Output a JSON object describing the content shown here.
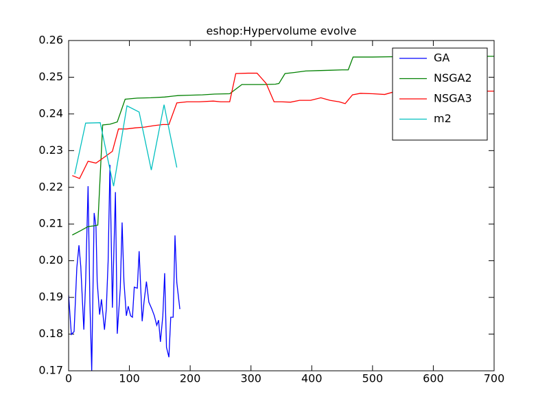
{
  "chart_data": {
    "type": "line",
    "title": "eshop:Hypervolume evolve",
    "xlim": [
      0,
      700
    ],
    "xticks": [
      0,
      100,
      200,
      300,
      400,
      500,
      600,
      700
    ],
    "ylim": [
      0.17,
      0.26
    ],
    "yticks": [
      0.17,
      0.18,
      0.19,
      {
        "value": 0.2,
        "label": "0.20"
      },
      0.21,
      0.22,
      0.23,
      0.24,
      0.25,
      0.26
    ],
    "legend": "upper right",
    "series": [
      {
        "name": "GA",
        "color": "#0000ff",
        "x": [
          0,
          4.5,
          9,
          13.5,
          17,
          20,
          25,
          28,
          32,
          35,
          38,
          42,
          45,
          47,
          51,
          54,
          59,
          62,
          65,
          68,
          72,
          77,
          80,
          85,
          88,
          91,
          95,
          98,
          102,
          105,
          108,
          113,
          116,
          121,
          124,
          128,
          132,
          137,
          141,
          145,
          148,
          151,
          155,
          158,
          161,
          165,
          168,
          172,
          175,
          178,
          183
        ],
        "values": [
          0.1906,
          0.1799,
          0.1807,
          0.1981,
          0.2042,
          0.1984,
          0.1812,
          0.1943,
          0.2203,
          0.1887,
          0.17,
          0.213,
          0.2093,
          0.1943,
          0.1853,
          0.1895,
          0.1812,
          0.1868,
          0.1999,
          0.2261,
          0.1872,
          0.2187,
          0.1801,
          0.1925,
          0.2104,
          0.1943,
          0.185,
          0.1876,
          0.185,
          0.1846,
          0.1928,
          0.1925,
          0.2026,
          0.1835,
          0.1887,
          0.1943,
          0.1887,
          0.1868,
          0.185,
          0.1824,
          0.1838,
          0.1779,
          0.185,
          0.1966,
          0.1764,
          0.1737,
          0.1846,
          0.1846,
          0.2069,
          0.194,
          0.1868
        ]
      },
      {
        "name": "NSGA2",
        "color": "#008000",
        "x": [
          6,
          20,
          32,
          42,
          48,
          56,
          68,
          80,
          93,
          113,
          135,
          158,
          180,
          200,
          220,
          240,
          265,
          285,
          320,
          340,
          346,
          356,
          372,
          390,
          410,
          430,
          450,
          460,
          468,
          500,
          540,
          580,
          620,
          660,
          700
        ],
        "values": [
          0.207,
          0.2082,
          0.2093,
          0.2095,
          0.2097,
          0.237,
          0.2372,
          0.2378,
          0.244,
          0.2443,
          0.2444,
          0.2446,
          0.245,
          0.2451,
          0.2452,
          0.2454,
          0.2455,
          0.248,
          0.248,
          0.2481,
          0.2483,
          0.251,
          0.2513,
          0.2517,
          0.2518,
          0.2519,
          0.252,
          0.252,
          0.2555,
          0.2555,
          0.2556,
          0.2556,
          0.2556,
          0.2557,
          0.2557
        ]
      },
      {
        "name": "NSGA3",
        "color": "#ff0000",
        "x": [
          6,
          18,
          32,
          45,
          57,
          72,
          82,
          95,
          110,
          125,
          140,
          155,
          165,
          178,
          195,
          215,
          238,
          250,
          265,
          275,
          295,
          310,
          325,
          338,
          350,
          365,
          380,
          398,
          415,
          430,
          445,
          455,
          467,
          480,
          500,
          520,
          535,
          560,
          620,
          700
        ],
        "values": [
          0.2232,
          0.2224,
          0.2271,
          0.2266,
          0.228,
          0.2298,
          0.2359,
          0.2359,
          0.2362,
          0.2364,
          0.2368,
          0.2371,
          0.2371,
          0.243,
          0.2433,
          0.2433,
          0.2435,
          0.2433,
          0.2433,
          0.251,
          0.2511,
          0.2511,
          0.2483,
          0.2433,
          0.2433,
          0.2432,
          0.2437,
          0.2437,
          0.2444,
          0.2437,
          0.2433,
          0.2428,
          0.2452,
          0.2456,
          0.2455,
          0.2453,
          0.246,
          0.2462,
          0.2462,
          0.2462
        ]
      },
      {
        "name": "m2",
        "color": "#00bfbf",
        "x": [
          10,
          28,
          52,
          64,
          74,
          96,
          116,
          136,
          157,
          178
        ],
        "values": [
          0.2236,
          0.2375,
          0.2376,
          0.228,
          0.2203,
          0.2422,
          0.2405,
          0.2247,
          0.2425,
          0.2254
        ]
      }
    ]
  }
}
